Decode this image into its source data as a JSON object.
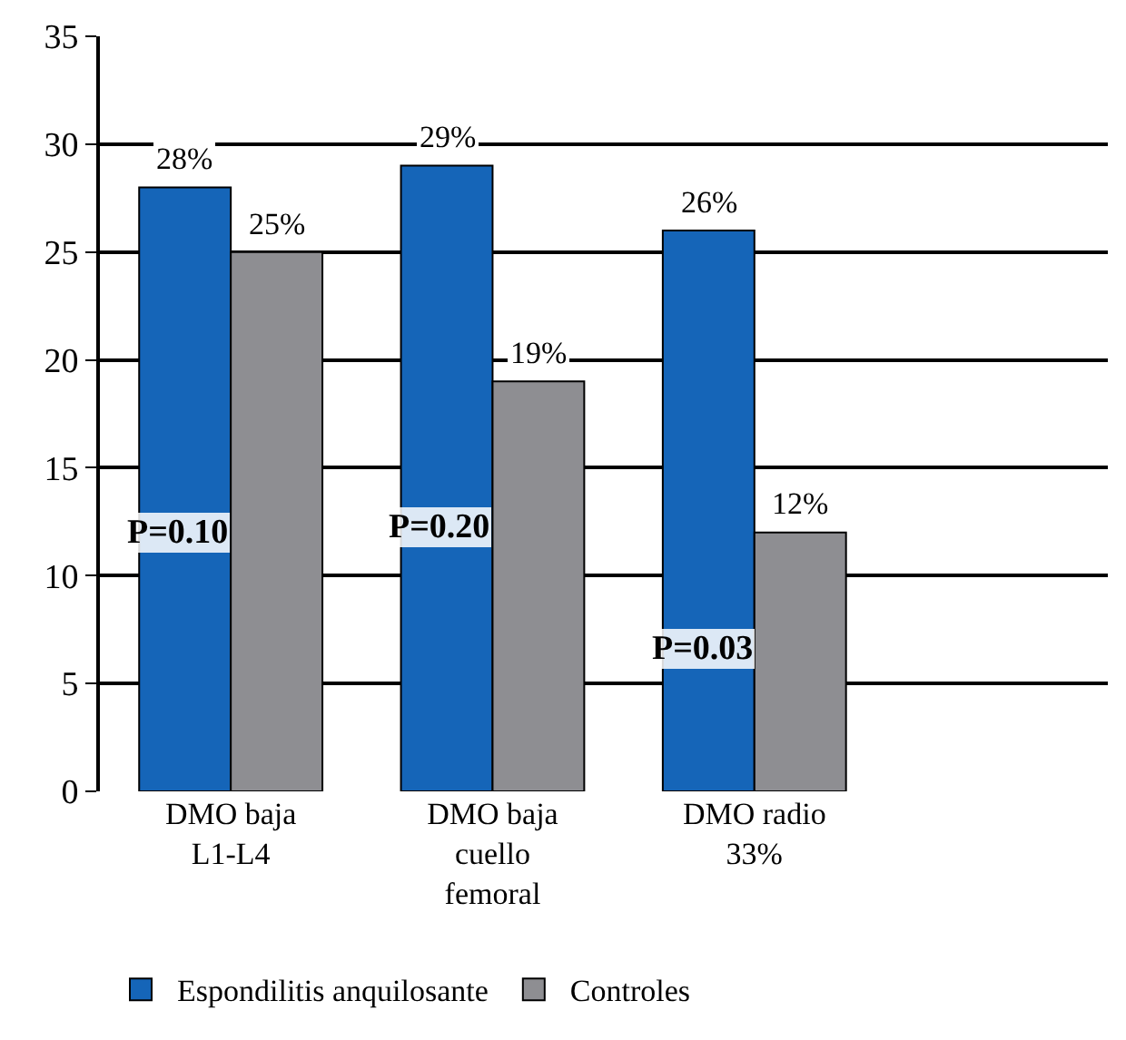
{
  "chart_data": {
    "type": "bar",
    "categories": [
      "DMO baja L1-L4",
      "DMO baja cuello femoral",
      "DMO radio 33%"
    ],
    "series": [
      {
        "name": "Espondilitis anquilosante",
        "color": "#1565b8",
        "values": [
          28,
          29,
          26
        ],
        "value_labels": [
          "28%",
          "29%",
          "26%"
        ]
      },
      {
        "name": "Controles",
        "color": "#8e8e92",
        "values": [
          25,
          19,
          12
        ],
        "value_labels": [
          "25%",
          "19%",
          "12%"
        ]
      }
    ],
    "ylim": [
      0,
      35
    ],
    "yticks": [
      0,
      5,
      10,
      15,
      20,
      25,
      30,
      35
    ],
    "grid": "y",
    "legend": "bottom",
    "annotations": [
      {
        "text": "P=0.10",
        "x": "DMO baja L1-L4",
        "y": 12
      },
      {
        "text": "P=0.20",
        "x": "DMO baja cuello femoral",
        "y": 12.2
      },
      {
        "text": "P=0.03",
        "x": "DMO radio 33%",
        "y": 6.6
      }
    ]
  }
}
